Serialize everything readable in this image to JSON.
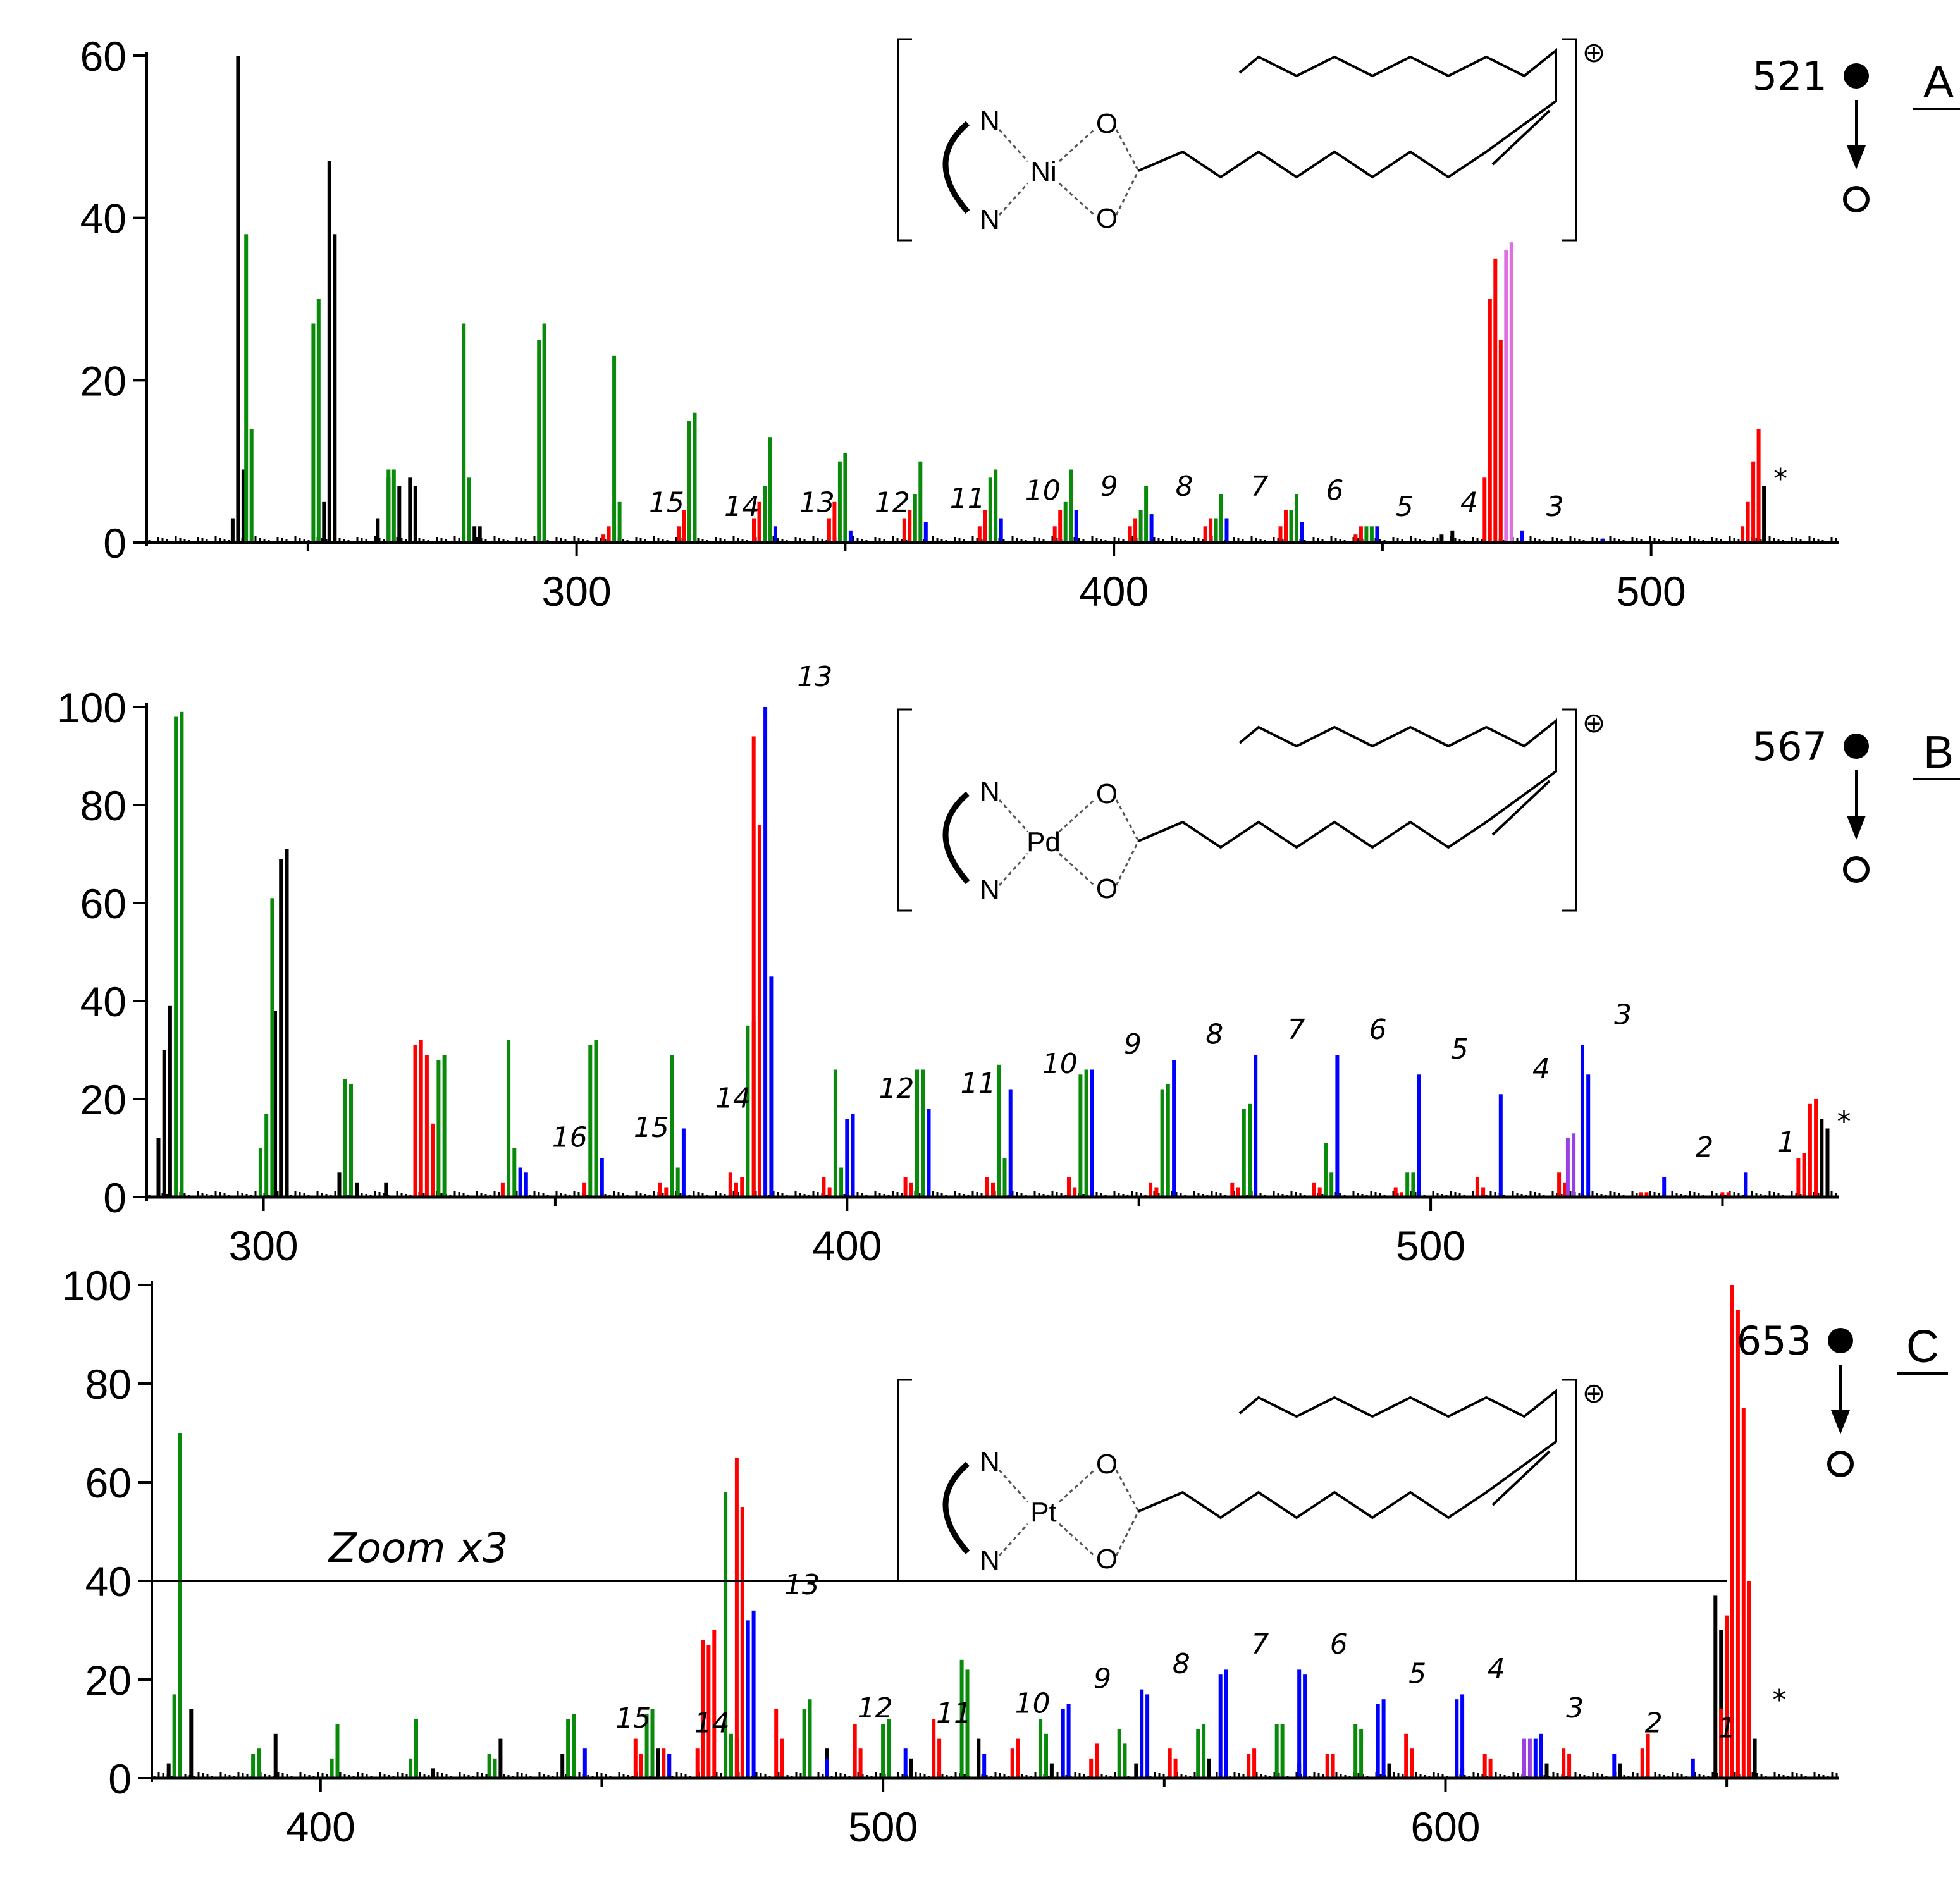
{
  "colors": {
    "red": "#ff0000",
    "green": "#0a8a0a",
    "blue": "#0000ff",
    "black": "#000000",
    "violet": "#e070e0",
    "purple": "#9a3ee6"
  },
  "chart_data": [
    {
      "type": "bar",
      "panel": "A",
      "precursor": "521",
      "metal": "Ni",
      "charge_symbol": "⊕",
      "ylim": [
        0,
        60
      ],
      "yticks": [
        "0",
        "20",
        "40",
        "60"
      ],
      "xlim": [
        220,
        535
      ],
      "xticks": [
        "300",
        "400",
        "500"
      ],
      "star_label": "*",
      "series": [
        {
          "color": "black",
          "x": [
            236,
            237,
            238,
            253,
            254,
            255,
            263,
            265,
            267,
            269,
            270,
            281,
            282
          ],
          "values": [
            3,
            60,
            9,
            5,
            47,
            38,
            3,
            8,
            7,
            8,
            7,
            2,
            2
          ]
        },
        {
          "color": "green",
          "x": [
            238.5,
            239.5,
            251,
            252,
            265,
            266,
            279,
            280,
            293,
            294,
            307,
            308,
            321,
            322,
            335,
            336,
            349,
            350,
            363,
            364,
            377,
            378,
            391,
            392,
            405,
            406,
            419,
            420,
            433,
            434,
            447,
            448
          ],
          "values": [
            38,
            14,
            27,
            30,
            9,
            9,
            27,
            8,
            25,
            27,
            23,
            5,
            15,
            16,
            7,
            13,
            10,
            11,
            6,
            10,
            8,
            9,
            5,
            9,
            4,
            7,
            3,
            6,
            4,
            6,
            2,
            2
          ]
        },
        {
          "color": "red",
          "x": [
            305,
            306,
            319,
            320,
            333,
            334,
            347,
            348,
            361,
            362,
            375,
            376,
            389,
            390,
            403,
            404,
            417,
            418,
            431,
            432,
            445,
            446,
            469,
            470,
            471,
            472,
            517,
            518,
            519,
            520
          ],
          "values": [
            1,
            2,
            2,
            4,
            3,
            5,
            3,
            5,
            3,
            4,
            2,
            4,
            2,
            4,
            2,
            3,
            2,
            3,
            2,
            4,
            1,
            2,
            8,
            30,
            35,
            25,
            2,
            5,
            10,
            14
          ]
        },
        {
          "color": "blue",
          "x": [
            337,
            351,
            365,
            379,
            393,
            407,
            421,
            435,
            449,
            476,
            491
          ],
          "values": [
            2,
            1.5,
            2.5,
            3,
            4,
            3.5,
            3,
            2.5,
            2,
            1.5,
            0.5
          ]
        },
        {
          "color": "violet",
          "x": [
            473,
            474
          ],
          "values": [
            36,
            37
          ]
        },
        {
          "color": "black",
          "x": [
            461,
            463,
            521
          ],
          "values": [
            1,
            1.5,
            7
          ]
        }
      ],
      "peak_labels": [
        {
          "text": "15",
          "x": 313,
          "y": 3
        },
        {
          "text": "14",
          "x": 327,
          "y": 2.5
        },
        {
          "text": "13",
          "x": 341,
          "y": 3
        },
        {
          "text": "12",
          "x": 355,
          "y": 3
        },
        {
          "text": "11",
          "x": 369,
          "y": 3.5
        },
        {
          "text": "10",
          "x": 383,
          "y": 4.5
        },
        {
          "text": "9",
          "x": 397,
          "y": 5
        },
        {
          "text": "8",
          "x": 411,
          "y": 5
        },
        {
          "text": "7",
          "x": 425,
          "y": 5
        },
        {
          "text": "6",
          "x": 439,
          "y": 4.5
        },
        {
          "text": "5",
          "x": 452,
          "y": 2.5
        },
        {
          "text": "4",
          "x": 464,
          "y": 3
        },
        {
          "text": "3",
          "x": 480,
          "y": 2.5
        }
      ]
    },
    {
      "type": "bar",
      "panel": "B",
      "precursor": "567",
      "metal": "Pd",
      "charge_symbol": "⊕",
      "ylim": [
        0,
        100
      ],
      "yticks": [
        "0",
        "20",
        "40",
        "60",
        "80",
        "100"
      ],
      "xlim": [
        280,
        570
      ],
      "xticks": [
        "300",
        "400",
        "500"
      ],
      "star_label": "*",
      "series": [
        {
          "color": "black",
          "x": [
            282,
            283,
            284,
            302,
            303,
            304,
            313,
            316,
            321
          ],
          "values": [
            12,
            30,
            39,
            38,
            69,
            71,
            5,
            3,
            3
          ]
        },
        {
          "color": "green",
          "x": [
            285,
            286,
            299.5,
            300.5,
            301.5,
            314,
            315,
            330,
            331,
            342,
            343,
            356,
            357,
            370,
            371,
            383,
            384,
            398,
            399,
            412,
            413,
            426,
            427,
            440,
            441,
            454,
            455,
            468,
            469,
            482,
            483,
            496,
            497
          ],
          "values": [
            98,
            99,
            10,
            17,
            61,
            24,
            23,
            28,
            29,
            32,
            10,
            31,
            32,
            29,
            6,
            35,
            36,
            26,
            6,
            26,
            26,
            27,
            8,
            25,
            26,
            22,
            23,
            18,
            19,
            11,
            5,
            5,
            5
          ]
        },
        {
          "color": "red",
          "x": [
            326,
            327,
            328,
            329,
            341,
            355,
            368,
            369,
            380,
            381,
            382,
            384,
            385,
            396,
            397,
            410,
            411,
            424,
            425,
            438,
            439,
            452,
            453,
            466,
            467,
            480,
            481,
            494,
            495,
            508,
            509,
            522,
            523,
            536,
            537,
            550,
            551,
            563,
            564,
            565,
            566
          ],
          "values": [
            31,
            32,
            29,
            15,
            3,
            3,
            3,
            2,
            5,
            3,
            4,
            94,
            76,
            4,
            2,
            4,
            3,
            4,
            3,
            4,
            2,
            3,
            2,
            3,
            2,
            3,
            2,
            2,
            1,
            4,
            2,
            5,
            3,
            1,
            1,
            1,
            1,
            8,
            9,
            19,
            20
          ]
        },
        {
          "color": "blue",
          "x": [
            344,
            345,
            358,
            372,
            386,
            387,
            400,
            401,
            414,
            428,
            442,
            456,
            470,
            484,
            498,
            512,
            526,
            527,
            540,
            554
          ],
          "values": [
            6,
            5,
            8,
            14,
            100,
            45,
            16,
            17,
            18,
            22,
            26,
            28,
            29,
            29,
            25,
            21,
            31,
            25,
            4,
            5
          ]
        },
        {
          "color": "purple",
          "x": [
            523.5,
            524.5
          ],
          "values": [
            12,
            13
          ]
        },
        {
          "color": "black",
          "x": [
            567,
            568
          ],
          "values": [
            16,
            14
          ]
        }
      ],
      "peak_labels": [
        {
          "text": "16",
          "x": 349,
          "y": 9
        },
        {
          "text": "15",
          "x": 363,
          "y": 11
        },
        {
          "text": "14",
          "x": 377,
          "y": 17
        },
        {
          "text": "13",
          "x": 391,
          "y": 103
        },
        {
          "text": "12",
          "x": 405,
          "y": 19
        },
        {
          "text": "11",
          "x": 419,
          "y": 20
        },
        {
          "text": "10",
          "x": 433,
          "y": 24
        },
        {
          "text": "9",
          "x": 447,
          "y": 28
        },
        {
          "text": "8",
          "x": 461,
          "y": 30
        },
        {
          "text": "7",
          "x": 475,
          "y": 31
        },
        {
          "text": "6",
          "x": 489,
          "y": 31
        },
        {
          "text": "5",
          "x": 503,
          "y": 27
        },
        {
          "text": "4",
          "x": 517,
          "y": 23
        },
        {
          "text": "3",
          "x": 531,
          "y": 34
        },
        {
          "text": "2",
          "x": 545,
          "y": 7
        },
        {
          "text": "1",
          "x": 559,
          "y": 8
        }
      ]
    },
    {
      "type": "bar",
      "panel": "C",
      "precursor": "653",
      "metal": "Pt",
      "charge_symbol": "⊕",
      "ylim": [
        0,
        100
      ],
      "yticks": [
        "0",
        "20",
        "40",
        "60",
        "80",
        "100"
      ],
      "xlim": [
        370,
        670
      ],
      "xticks": [
        "400",
        "500",
        "600"
      ],
      "annotation": "Zoom x3",
      "zoom_line_y": 40,
      "star_label": "*",
      "series": [
        {
          "color": "black",
          "x": [
            373,
            375,
            377,
            392,
            420,
            432,
            443,
            460,
            474,
            490,
            505,
            517,
            530,
            545,
            558,
            574,
            590,
            603,
            618,
            631,
            648,
            649,
            650,
            655
          ],
          "values": [
            3,
            4,
            14,
            9,
            2,
            8,
            5,
            6,
            8,
            6,
            4,
            8,
            3,
            3,
            4,
            3,
            3,
            2,
            3,
            3,
            37,
            30,
            20,
            8
          ]
        },
        {
          "color": "green",
          "x": [
            374,
            375,
            388,
            389,
            402,
            403,
            416,
            417,
            430,
            431,
            444,
            445,
            458,
            459,
            472,
            473,
            486,
            487,
            500,
            501,
            514,
            515,
            528,
            529,
            542,
            543,
            556,
            557,
            570,
            571,
            584,
            585
          ],
          "values": [
            17,
            70,
            5,
            6,
            4,
            11,
            4,
            12,
            5,
            4,
            12,
            13,
            13,
            14,
            58,
            9,
            14,
            16,
            11,
            12,
            24,
            22,
            12,
            9,
            10,
            7,
            10,
            11,
            11,
            11,
            11,
            10
          ]
        },
        {
          "color": "red",
          "x": [
            456,
            457,
            461,
            462,
            467,
            468,
            469,
            470,
            474,
            475,
            481,
            482,
            495,
            496,
            509,
            510,
            523,
            524,
            537,
            538,
            551,
            552,
            565,
            566,
            579,
            580,
            593,
            594,
            607,
            608,
            621,
            622,
            635,
            636,
            649,
            650,
            651,
            652,
            653,
            654
          ],
          "values": [
            8,
            5,
            6,
            5,
            6,
            28,
            27,
            30,
            65,
            55,
            14,
            8,
            11,
            6,
            12,
            8,
            6,
            8,
            4,
            7,
            6,
            4,
            5,
            6,
            5,
            5,
            9,
            6,
            5,
            4,
            6,
            5,
            6,
            9,
            14,
            33,
            100,
            95,
            75,
            40
          ]
        },
        {
          "color": "blue",
          "x": [
            447,
            462,
            476,
            477,
            490,
            504,
            518,
            532,
            533,
            546,
            547,
            560,
            561,
            574,
            575,
            588,
            589,
            602,
            603,
            616,
            617,
            630,
            644
          ],
          "values": [
            6,
            5,
            32,
            34,
            4,
            6,
            5,
            14,
            15,
            18,
            17,
            21,
            22,
            22,
            21,
            15,
            16,
            16,
            17,
            8,
            9,
            5,
            4
          ]
        },
        {
          "color": "purple",
          "x": [
            614,
            615
          ],
          "values": [
            8,
            8
          ]
        }
      ],
      "peak_labels": [
        {
          "text": "15",
          "x": 452,
          "y": 9
        },
        {
          "text": "14",
          "x": 466,
          "y": 8
        },
        {
          "text": "13",
          "x": 482,
          "y": 36
        },
        {
          "text": "12",
          "x": 495,
          "y": 11
        },
        {
          "text": "11",
          "x": 509,
          "y": 10
        },
        {
          "text": "10",
          "x": 523,
          "y": 12
        },
        {
          "text": "9",
          "x": 537,
          "y": 17
        },
        {
          "text": "8",
          "x": 551,
          "y": 20
        },
        {
          "text": "7",
          "x": 565,
          "y": 24
        },
        {
          "text": "6",
          "x": 579,
          "y": 24
        },
        {
          "text": "5",
          "x": 593,
          "y": 18
        },
        {
          "text": "4",
          "x": 607,
          "y": 19
        },
        {
          "text": "3",
          "x": 621,
          "y": 11
        },
        {
          "text": "2",
          "x": 635,
          "y": 8
        },
        {
          "text": "1",
          "x": 648,
          "y": 7
        }
      ]
    }
  ]
}
